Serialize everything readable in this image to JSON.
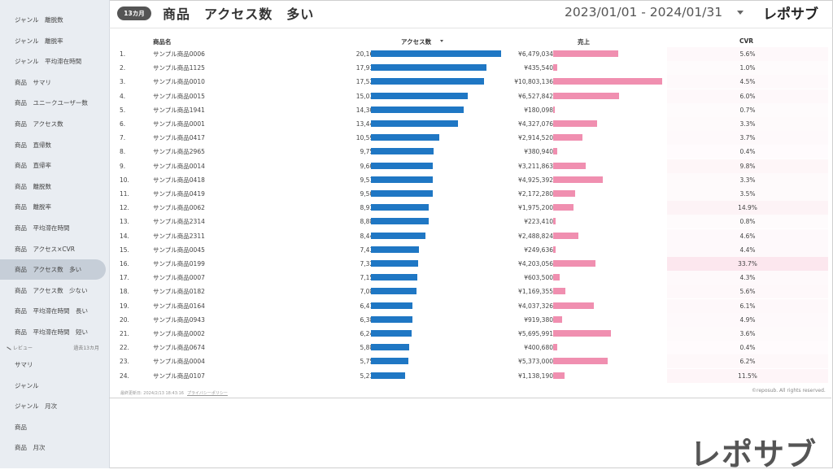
{
  "sidebar": {
    "items": [
      {
        "label": "ジャンル　離脱数",
        "active": false
      },
      {
        "label": "ジャンル　離脱率",
        "active": false
      },
      {
        "label": "ジャンル　平均滞在時間",
        "active": false
      },
      {
        "label": "商品　サマリ",
        "active": false
      },
      {
        "label": "商品　ユニークユーザー数",
        "active": false
      },
      {
        "label": "商品　アクセス数",
        "active": false
      },
      {
        "label": "商品　直帰数",
        "active": false
      },
      {
        "label": "商品　直帰率",
        "active": false
      },
      {
        "label": "商品　離脱数",
        "active": false
      },
      {
        "label": "商品　離脱率",
        "active": false
      },
      {
        "label": "商品　平均滞在時間",
        "active": false
      },
      {
        "label": "商品　アクセス×CVR",
        "active": false
      },
      {
        "label": "商品　アクセス数　多い",
        "active": true
      },
      {
        "label": "商品　アクセス数　少ない",
        "active": false
      },
      {
        "label": "商品　平均滞在時間　長い",
        "active": false
      },
      {
        "label": "商品　平均滞在時間　短い",
        "active": false
      }
    ],
    "section": {
      "label": "レビュー",
      "note": "過去13カ月"
    },
    "review_items": [
      {
        "label": "サマリ"
      },
      {
        "label": "ジャンル"
      },
      {
        "label": "ジャンル　月次"
      },
      {
        "label": "商品"
      },
      {
        "label": "商品　月次"
      }
    ]
  },
  "header": {
    "badge": "13カ月",
    "title": "商品　アクセス数　多い",
    "date_range": "2023/01/01 - 2024/01/31",
    "logo": "レポサブ"
  },
  "table": {
    "headers": {
      "name": "商品名",
      "access": "アクセス数",
      "sales": "売上",
      "cvr": "CVR"
    },
    "max_access": 20160,
    "max_sales": 10803136,
    "max_cvr": 33.7,
    "rows": [
      {
        "no": "1.",
        "name": "サンプル商品0006",
        "access": 20160,
        "access_label": "20,160",
        "sales": 6479034,
        "sales_label": "¥6,479,034",
        "cvr": 5.6,
        "cvr_label": "5.6%"
      },
      {
        "no": "2.",
        "name": "サンプル商品1125",
        "access": 17931,
        "access_label": "17,931",
        "sales": 435540,
        "sales_label": "¥435,540",
        "cvr": 1.0,
        "cvr_label": "1.0%"
      },
      {
        "no": "3.",
        "name": "サンプル商品0010",
        "access": 17527,
        "access_label": "17,527",
        "sales": 10803136,
        "sales_label": "¥10,803,136",
        "cvr": 4.5,
        "cvr_label": "4.5%"
      },
      {
        "no": "4.",
        "name": "サンプル商品0015",
        "access": 15038,
        "access_label": "15,038",
        "sales": 6527842,
        "sales_label": "¥6,527,842",
        "cvr": 6.0,
        "cvr_label": "6.0%"
      },
      {
        "no": "5.",
        "name": "サンプル商品1941",
        "access": 14300,
        "access_label": "14,300",
        "sales": 180098,
        "sales_label": "¥180,098",
        "cvr": 0.7,
        "cvr_label": "0.7%"
      },
      {
        "no": "6.",
        "name": "サンプル商品0001",
        "access": 13446,
        "access_label": "13,446",
        "sales": 4327076,
        "sales_label": "¥4,327,076",
        "cvr": 3.3,
        "cvr_label": "3.3%"
      },
      {
        "no": "7.",
        "name": "サンプル商品0417",
        "access": 10590,
        "access_label": "10,590",
        "sales": 2914520,
        "sales_label": "¥2,914,520",
        "cvr": 3.7,
        "cvr_label": "3.7%"
      },
      {
        "no": "8.",
        "name": "サンプル商品2965",
        "access": 9757,
        "access_label": "9,757",
        "sales": 380940,
        "sales_label": "¥380,940",
        "cvr": 0.4,
        "cvr_label": "0.4%"
      },
      {
        "no": "9.",
        "name": "サンプル商品0014",
        "access": 9609,
        "access_label": "9,609",
        "sales": 3211863,
        "sales_label": "¥3,211,863",
        "cvr": 9.8,
        "cvr_label": "9.8%"
      },
      {
        "no": "10.",
        "name": "サンプル商品0418",
        "access": 9510,
        "access_label": "9,510",
        "sales": 4925392,
        "sales_label": "¥4,925,392",
        "cvr": 3.3,
        "cvr_label": "3.3%"
      },
      {
        "no": "11.",
        "name": "サンプル商品0419",
        "access": 9508,
        "access_label": "9,508",
        "sales": 2172280,
        "sales_label": "¥2,172,280",
        "cvr": 3.5,
        "cvr_label": "3.5%"
      },
      {
        "no": "12.",
        "name": "サンプル商品0062",
        "access": 8932,
        "access_label": "8,932",
        "sales": 1975200,
        "sales_label": "¥1,975,200",
        "cvr": 14.9,
        "cvr_label": "14.9%"
      },
      {
        "no": "13.",
        "name": "サンプル商品2314",
        "access": 8887,
        "access_label": "8,887",
        "sales": 223410,
        "sales_label": "¥223,410",
        "cvr": 0.8,
        "cvr_label": "0.8%"
      },
      {
        "no": "14.",
        "name": "サンプル商品2311",
        "access": 8444,
        "access_label": "8,444",
        "sales": 2488824,
        "sales_label": "¥2,488,824",
        "cvr": 4.6,
        "cvr_label": "4.6%"
      },
      {
        "no": "15.",
        "name": "サンプル商品0045",
        "access": 7438,
        "access_label": "7,438",
        "sales": 249636,
        "sales_label": "¥249,636",
        "cvr": 4.4,
        "cvr_label": "4.4%"
      },
      {
        "no": "16.",
        "name": "サンプル商品0199",
        "access": 7324,
        "access_label": "7,324",
        "sales": 4203056,
        "sales_label": "¥4,203,056",
        "cvr": 33.7,
        "cvr_label": "33.7%"
      },
      {
        "no": "17.",
        "name": "サンプル商品0007",
        "access": 7151,
        "access_label": "7,151",
        "sales": 603500,
        "sales_label": "¥603,500",
        "cvr": 4.3,
        "cvr_label": "4.3%"
      },
      {
        "no": "18.",
        "name": "サンプル商品0182",
        "access": 7081,
        "access_label": "7,081",
        "sales": 1169355,
        "sales_label": "¥1,169,355",
        "cvr": 5.6,
        "cvr_label": "5.6%"
      },
      {
        "no": "19.",
        "name": "サンプル商品0164",
        "access": 6414,
        "access_label": "6,414",
        "sales": 4037326,
        "sales_label": "¥4,037,326",
        "cvr": 6.1,
        "cvr_label": "6.1%"
      },
      {
        "no": "20.",
        "name": "サンプル商品0943",
        "access": 6382,
        "access_label": "6,382",
        "sales": 919380,
        "sales_label": "¥919,380",
        "cvr": 4.9,
        "cvr_label": "4.9%"
      },
      {
        "no": "21.",
        "name": "サンプル商品0002",
        "access": 6240,
        "access_label": "6,240",
        "sales": 5695991,
        "sales_label": "¥5,695,991",
        "cvr": 3.6,
        "cvr_label": "3.6%"
      },
      {
        "no": "22.",
        "name": "サンプル商品0674",
        "access": 5886,
        "access_label": "5,886",
        "sales": 400680,
        "sales_label": "¥400,680",
        "cvr": 0.4,
        "cvr_label": "0.4%"
      },
      {
        "no": "23.",
        "name": "サンプル商品0004",
        "access": 5750,
        "access_label": "5,750",
        "sales": 5373000,
        "sales_label": "¥5,373,000",
        "cvr": 6.2,
        "cvr_label": "6.2%"
      },
      {
        "no": "24.",
        "name": "サンプル商品0107",
        "access": 5234,
        "access_label": "5,234",
        "sales": 1138190,
        "sales_label": "¥1,138,190",
        "cvr": 11.5,
        "cvr_label": "11.5%"
      }
    ]
  },
  "footer": {
    "updated": "最終更新日: 2024/2/13 18:43:16",
    "privacy": "プライバシーポリシー",
    "copyright": "©reposub. All rights reserved."
  },
  "watermark": "レポサブ",
  "colors": {
    "access_bar": "#1f77c4",
    "sales_bar": "#f08fb0",
    "cvr_heat": "#f7c6d6"
  }
}
